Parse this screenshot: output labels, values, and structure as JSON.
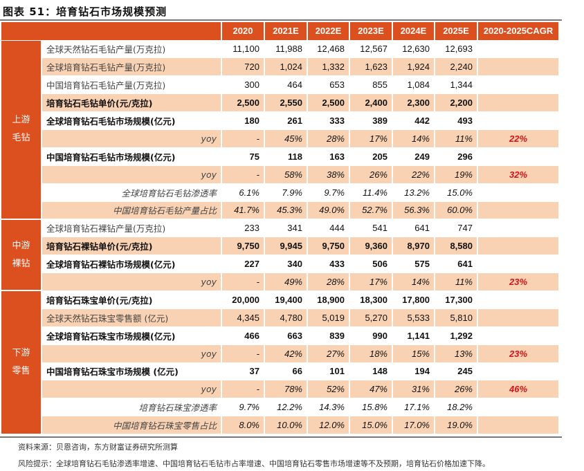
{
  "title": "图表 51：培育钻石市场规模预测",
  "columns": [
    "2020",
    "2021E",
    "2022E",
    "2023E",
    "2024E",
    "2025E",
    "2020-2025CAGR"
  ],
  "groups": [
    {
      "label": "上游\n毛钻",
      "rows": [
        {
          "label": "全球天然钻石毛钻产量(万克拉)",
          "style": "normal",
          "values": [
            "11,100",
            "11,988",
            "12,468",
            "12,567",
            "12,630",
            "12,693"
          ],
          "cagr": ""
        },
        {
          "label": "全球培育钻石毛钻产量(万克拉)",
          "style": "normal",
          "values": [
            "720",
            "1,024",
            "1,332",
            "1,623",
            "1,924",
            "2,240"
          ],
          "cagr": ""
        },
        {
          "label": "中国培育钻石毛钻产量(万克拉)",
          "style": "normal",
          "values": [
            "300",
            "464",
            "653",
            "855",
            "1,084",
            "1,344"
          ],
          "cagr": ""
        },
        {
          "label": "培育钻石毛钻单价(元/克拉)",
          "style": "bold",
          "values": [
            "2,500",
            "2,550",
            "2,500",
            "2,400",
            "2,300",
            "2,200"
          ],
          "cagr": ""
        },
        {
          "label": "全球培育钻石毛钻市场规模(亿元)",
          "style": "bold",
          "values": [
            "180",
            "261",
            "333",
            "389",
            "442",
            "493"
          ],
          "cagr": ""
        },
        {
          "label": "yoy",
          "style": "ital",
          "values": [
            "-",
            "45%",
            "28%",
            "17%",
            "14%",
            "11%"
          ],
          "cagr": "22%"
        },
        {
          "label": "中国培育钻石毛钻市场规模(亿元)",
          "style": "bold",
          "values": [
            "75",
            "118",
            "163",
            "205",
            "249",
            "296"
          ],
          "cagr": ""
        },
        {
          "label": "yoy",
          "style": "ital",
          "values": [
            "-",
            "58%",
            "38%",
            "26%",
            "22%",
            "19%"
          ],
          "cagr": "32%"
        },
        {
          "label": "全球培育钻石毛钻渗透率",
          "style": "ital",
          "values": [
            "6.1%",
            "7.9%",
            "9.7%",
            "11.4%",
            "13.2%",
            "15.0%"
          ],
          "cagr": ""
        },
        {
          "label": "中国培育钻石毛钻产量占比",
          "style": "ital",
          "values": [
            "41.7%",
            "45.3%",
            "49.0%",
            "52.7%",
            "56.3%",
            "60.0%"
          ],
          "cagr": ""
        }
      ]
    },
    {
      "label": "中游\n裸钻",
      "rows": [
        {
          "label": "全球培育钻石裸钻产量(万克拉)",
          "style": "normal",
          "values": [
            "233",
            "341",
            "444",
            "541",
            "641",
            "747"
          ],
          "cagr": ""
        },
        {
          "label": "培育钻石裸钻单价(元/克拉)",
          "style": "bold",
          "values": [
            "9,750",
            "9,945",
            "9,750",
            "9,360",
            "8,970",
            "8,580"
          ],
          "cagr": ""
        },
        {
          "label": "全球培育钻石裸钻市场规模(亿元)",
          "style": "bold",
          "values": [
            "227",
            "340",
            "433",
            "506",
            "575",
            "641"
          ],
          "cagr": ""
        },
        {
          "label": "yoy",
          "style": "ital",
          "values": [
            "-",
            "49%",
            "28%",
            "17%",
            "14%",
            "11%"
          ],
          "cagr": "23%"
        }
      ]
    },
    {
      "label": "下游\n零售",
      "rows": [
        {
          "label": "培育钻石珠宝单价(元/克拉)",
          "style": "bold",
          "values": [
            "20,000",
            "19,400",
            "18,900",
            "18,300",
            "17,800",
            "17,300"
          ],
          "cagr": ""
        },
        {
          "label": "全球天然钻石珠宝零售额 (亿元)",
          "style": "normal",
          "values": [
            "4,345",
            "4,780",
            "5,019",
            "5,270",
            "5,533",
            "5,810"
          ],
          "cagr": ""
        },
        {
          "label": "全球培育钻石珠宝市场规模(亿元)",
          "style": "bold",
          "values": [
            "466",
            "663",
            "839",
            "990",
            "1,141",
            "1,292"
          ],
          "cagr": ""
        },
        {
          "label": "yoy",
          "style": "ital",
          "values": [
            "-",
            "42%",
            "27%",
            "18%",
            "15%",
            "13%"
          ],
          "cagr": "23%"
        },
        {
          "label": "中国培育钻石珠宝市场规模 (亿元)",
          "style": "bold",
          "values": [
            "37",
            "66",
            "101",
            "148",
            "194",
            "245"
          ],
          "cagr": ""
        },
        {
          "label": "yoy",
          "style": "ital",
          "values": [
            "-",
            "78%",
            "52%",
            "47%",
            "31%",
            "26%"
          ],
          "cagr": "46%"
        },
        {
          "label": "培育钻石珠宝渗透率",
          "style": "ital",
          "values": [
            "9.7%",
            "12.2%",
            "14.3%",
            "15.8%",
            "17.1%",
            "18.2%"
          ],
          "cagr": ""
        },
        {
          "label": "中国培育钻石珠宝零售占比",
          "style": "ital",
          "values": [
            "8.0%",
            "10.0%",
            "12.0%",
            "15.0%",
            "17.0%",
            "19.0%"
          ],
          "cagr": ""
        }
      ]
    }
  ],
  "source": "资料来源：贝恩咨询，东方财富证券研究所测算",
  "risk": "风险提示：全球培育钻石毛钻渗透率增速、中国培育钻石毛钻市占率增速、中国培育钻石零售市场增速等不及预期，培育钻石价格加速下降。",
  "colors": {
    "header": "#dc4f1e",
    "stripe": "#f9d2b3",
    "cagr": "#d0141a"
  }
}
